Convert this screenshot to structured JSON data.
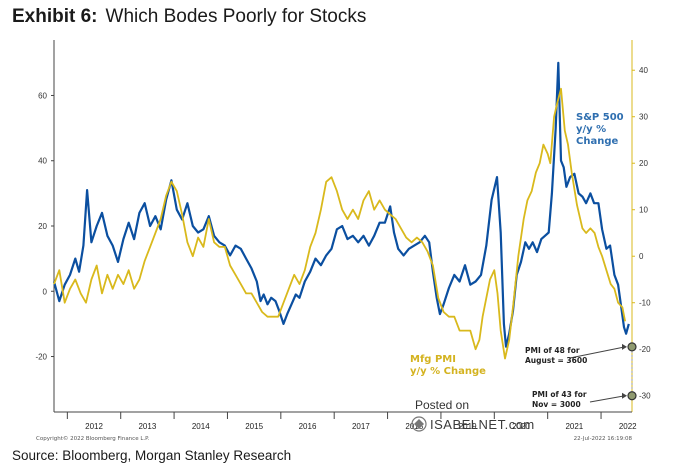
{
  "header": {
    "exhibit": "Exhibit 6:",
    "title": "Which Bodes Poorly for Stocks"
  },
  "source": "Source: Bloomberg, Morgan Stanley Research",
  "footer": {
    "copyright": "Copyright© 2022 Bloomberg Finance L.P.",
    "date": "22-Jul-2022 16:19:08"
  },
  "watermark": {
    "posted_on": "Posted on",
    "site": "ISABELNET.com"
  },
  "colors": {
    "sp500": "#0b4fa0",
    "pmi": "#d9b91c",
    "axis": "#444444"
  },
  "chart_data": {
    "type": "line",
    "title": "Which Bodes Poorly for Stocks",
    "x_categories": [
      "2012",
      "2013",
      "2014",
      "2015",
      "2016",
      "2017",
      "2018",
      "2019",
      "2020",
      "2021",
      "2022"
    ],
    "x_range": [
      2011.75,
      2022.58
    ],
    "left_axis": {
      "label": "S&P 500 y/y % Change",
      "range": [
        -37,
        77
      ],
      "ticks": [
        -20,
        0,
        20,
        40,
        60
      ]
    },
    "right_axis": {
      "label": "Mfg PMI y/y % Change",
      "range": [
        -33.5,
        46.5
      ],
      "ticks": [
        -30,
        -20,
        -10,
        0,
        10,
        20,
        30,
        40
      ]
    },
    "series": [
      {
        "name": "S&P 500 y/y % Change",
        "axis": "left",
        "points": [
          [
            2011.75,
            3
          ],
          [
            2011.85,
            -3
          ],
          [
            2011.95,
            2
          ],
          [
            2012.05,
            5
          ],
          [
            2012.15,
            10
          ],
          [
            2012.22,
            6
          ],
          [
            2012.3,
            14
          ],
          [
            2012.37,
            31
          ],
          [
            2012.45,
            15
          ],
          [
            2012.55,
            20
          ],
          [
            2012.65,
            24
          ],
          [
            2012.75,
            17
          ],
          [
            2012.85,
            14
          ],
          [
            2012.95,
            9
          ],
          [
            2013.05,
            16
          ],
          [
            2013.15,
            21
          ],
          [
            2013.25,
            16
          ],
          [
            2013.35,
            24
          ],
          [
            2013.45,
            27
          ],
          [
            2013.55,
            20
          ],
          [
            2013.65,
            23
          ],
          [
            2013.75,
            19
          ],
          [
            2013.85,
            28
          ],
          [
            2013.95,
            34
          ],
          [
            2014.05,
            25
          ],
          [
            2014.15,
            22
          ],
          [
            2014.25,
            27
          ],
          [
            2014.35,
            20
          ],
          [
            2014.45,
            18
          ],
          [
            2014.55,
            19
          ],
          [
            2014.65,
            23
          ],
          [
            2014.75,
            17
          ],
          [
            2014.85,
            15
          ],
          [
            2014.95,
            14
          ],
          [
            2015.05,
            11
          ],
          [
            2015.15,
            14
          ],
          [
            2015.25,
            13
          ],
          [
            2015.35,
            10
          ],
          [
            2015.45,
            7
          ],
          [
            2015.55,
            3
          ],
          [
            2015.62,
            -3
          ],
          [
            2015.68,
            -1
          ],
          [
            2015.75,
            -4
          ],
          [
            2015.82,
            -2
          ],
          [
            2015.9,
            -3
          ],
          [
            2015.97,
            -6
          ],
          [
            2016.05,
            -10
          ],
          [
            2016.12,
            -7
          ],
          [
            2016.2,
            -4
          ],
          [
            2016.28,
            -1
          ],
          [
            2016.35,
            -2
          ],
          [
            2016.45,
            3
          ],
          [
            2016.55,
            6
          ],
          [
            2016.65,
            10
          ],
          [
            2016.75,
            8
          ],
          [
            2016.85,
            11
          ],
          [
            2016.95,
            13
          ],
          [
            2017.05,
            19
          ],
          [
            2017.15,
            20
          ],
          [
            2017.25,
            16
          ],
          [
            2017.35,
            17
          ],
          [
            2017.45,
            15
          ],
          [
            2017.55,
            17
          ],
          [
            2017.65,
            14
          ],
          [
            2017.75,
            17
          ],
          [
            2017.85,
            21
          ],
          [
            2017.95,
            21
          ],
          [
            2018.05,
            26
          ],
          [
            2018.12,
            18
          ],
          [
            2018.2,
            13
          ],
          [
            2018.3,
            11
          ],
          [
            2018.4,
            13
          ],
          [
            2018.5,
            14
          ],
          [
            2018.6,
            15
          ],
          [
            2018.7,
            17
          ],
          [
            2018.78,
            15
          ],
          [
            2018.85,
            6
          ],
          [
            2018.92,
            -2
          ],
          [
            2018.98,
            -7
          ],
          [
            2019.05,
            -4
          ],
          [
            2019.15,
            1
          ],
          [
            2019.25,
            5
          ],
          [
            2019.35,
            3
          ],
          [
            2019.45,
            8
          ],
          [
            2019.55,
            2
          ],
          [
            2019.65,
            3
          ],
          [
            2019.75,
            5
          ],
          [
            2019.85,
            14
          ],
          [
            2019.95,
            28
          ],
          [
            2020.05,
            35
          ],
          [
            2020.12,
            18
          ],
          [
            2020.18,
            -10
          ],
          [
            2020.22,
            -17
          ],
          [
            2020.28,
            -13
          ],
          [
            2020.35,
            -6
          ],
          [
            2020.42,
            5
          ],
          [
            2020.5,
            9
          ],
          [
            2020.58,
            15
          ],
          [
            2020.65,
            13
          ],
          [
            2020.72,
            15
          ],
          [
            2020.8,
            12
          ],
          [
            2020.88,
            16
          ],
          [
            2020.95,
            17
          ],
          [
            2021.02,
            18
          ],
          [
            2021.08,
            30
          ],
          [
            2021.15,
            50
          ],
          [
            2021.2,
            70
          ],
          [
            2021.25,
            40
          ],
          [
            2021.3,
            38
          ],
          [
            2021.35,
            32
          ],
          [
            2021.42,
            35
          ],
          [
            2021.5,
            36
          ],
          [
            2021.58,
            30
          ],
          [
            2021.65,
            29
          ],
          [
            2021.72,
            27
          ],
          [
            2021.8,
            30
          ],
          [
            2021.87,
            27
          ],
          [
            2021.95,
            27
          ],
          [
            2022.02,
            19
          ],
          [
            2022.1,
            13
          ],
          [
            2022.17,
            14
          ],
          [
            2022.25,
            5
          ],
          [
            2022.32,
            2
          ],
          [
            2022.38,
            -5
          ],
          [
            2022.43,
            -11
          ],
          [
            2022.47,
            -13
          ],
          [
            2022.52,
            -10
          ]
        ]
      },
      {
        "name": "Mfg PMI y/y % Change",
        "axis": "right",
        "points": [
          [
            2011.75,
            -6
          ],
          [
            2011.85,
            -3
          ],
          [
            2011.95,
            -10
          ],
          [
            2012.05,
            -7
          ],
          [
            2012.15,
            -5
          ],
          [
            2012.25,
            -8
          ],
          [
            2012.35,
            -10
          ],
          [
            2012.45,
            -5
          ],
          [
            2012.55,
            -2
          ],
          [
            2012.65,
            -8
          ],
          [
            2012.75,
            -4
          ],
          [
            2012.85,
            -7
          ],
          [
            2012.95,
            -4
          ],
          [
            2013.05,
            -6
          ],
          [
            2013.15,
            -3
          ],
          [
            2013.25,
            -7
          ],
          [
            2013.35,
            -5
          ],
          [
            2013.45,
            -1
          ],
          [
            2013.55,
            2
          ],
          [
            2013.65,
            5
          ],
          [
            2013.75,
            8
          ],
          [
            2013.85,
            13
          ],
          [
            2013.95,
            16
          ],
          [
            2014.05,
            14
          ],
          [
            2014.15,
            9
          ],
          [
            2014.25,
            3
          ],
          [
            2014.35,
            0
          ],
          [
            2014.45,
            4
          ],
          [
            2014.55,
            2
          ],
          [
            2014.65,
            8
          ],
          [
            2014.75,
            3
          ],
          [
            2014.85,
            2
          ],
          [
            2014.95,
            2
          ],
          [
            2015.05,
            -2
          ],
          [
            2015.15,
            -4
          ],
          [
            2015.25,
            -6
          ],
          [
            2015.35,
            -8
          ],
          [
            2015.45,
            -8
          ],
          [
            2015.55,
            -10
          ],
          [
            2015.65,
            -12
          ],
          [
            2015.75,
            -13
          ],
          [
            2015.85,
            -13
          ],
          [
            2015.95,
            -13
          ],
          [
            2016.05,
            -10
          ],
          [
            2016.15,
            -7
          ],
          [
            2016.25,
            -4
          ],
          [
            2016.35,
            -6
          ],
          [
            2016.45,
            -3
          ],
          [
            2016.55,
            2
          ],
          [
            2016.65,
            5
          ],
          [
            2016.75,
            10
          ],
          [
            2016.85,
            16
          ],
          [
            2016.95,
            17
          ],
          [
            2017.05,
            14
          ],
          [
            2017.15,
            10
          ],
          [
            2017.25,
            8
          ],
          [
            2017.35,
            10
          ],
          [
            2017.45,
            8
          ],
          [
            2017.55,
            12
          ],
          [
            2017.65,
            14
          ],
          [
            2017.75,
            10
          ],
          [
            2017.85,
            12
          ],
          [
            2017.95,
            10
          ],
          [
            2018.05,
            9
          ],
          [
            2018.15,
            8
          ],
          [
            2018.25,
            6
          ],
          [
            2018.35,
            4
          ],
          [
            2018.45,
            3
          ],
          [
            2018.55,
            4
          ],
          [
            2018.65,
            3
          ],
          [
            2018.75,
            1
          ],
          [
            2018.85,
            -2
          ],
          [
            2018.95,
            -9
          ],
          [
            2019.05,
            -12
          ],
          [
            2019.15,
            -13
          ],
          [
            2019.25,
            -13
          ],
          [
            2019.35,
            -16
          ],
          [
            2019.45,
            -16
          ],
          [
            2019.55,
            -16
          ],
          [
            2019.65,
            -20
          ],
          [
            2019.72,
            -18
          ],
          [
            2019.78,
            -13
          ],
          [
            2019.85,
            -9
          ],
          [
            2019.92,
            -5
          ],
          [
            2020.0,
            -3
          ],
          [
            2020.06,
            -8
          ],
          [
            2020.12,
            -16
          ],
          [
            2020.2,
            -22
          ],
          [
            2020.28,
            -18
          ],
          [
            2020.36,
            -10
          ],
          [
            2020.45,
            0
          ],
          [
            2020.55,
            8
          ],
          [
            2020.62,
            12
          ],
          [
            2020.7,
            14
          ],
          [
            2020.78,
            18
          ],
          [
            2020.85,
            20
          ],
          [
            2020.92,
            24
          ],
          [
            2021.0,
            22
          ],
          [
            2021.05,
            20
          ],
          [
            2021.12,
            30
          ],
          [
            2021.18,
            33
          ],
          [
            2021.25,
            36
          ],
          [
            2021.32,
            27
          ],
          [
            2021.38,
            24
          ],
          [
            2021.45,
            18
          ],
          [
            2021.55,
            11
          ],
          [
            2021.65,
            6
          ],
          [
            2021.72,
            5
          ],
          [
            2021.8,
            6
          ],
          [
            2021.88,
            5
          ],
          [
            2021.95,
            2
          ],
          [
            2022.02,
            0
          ],
          [
            2022.1,
            -3
          ],
          [
            2022.18,
            -6
          ],
          [
            2022.25,
            -7
          ],
          [
            2022.32,
            -10
          ],
          [
            2022.4,
            -11
          ],
          [
            2022.45,
            -14
          ]
        ]
      }
    ],
    "annotations": [
      {
        "text_lines": [
          "PMI of 48 for",
          "August = 3600"
        ],
        "x": 2022.58,
        "y_right": -19.5
      },
      {
        "text_lines": [
          "PMI of 43 for",
          "Nov = 3000"
        ],
        "x": 2022.58,
        "y_right": -30
      }
    ],
    "labels": {
      "sp500": [
        "S&P 500",
        "y/y %",
        "Change"
      ],
      "pmi": [
        "Mfg PMI",
        "y/y % Change"
      ]
    }
  }
}
